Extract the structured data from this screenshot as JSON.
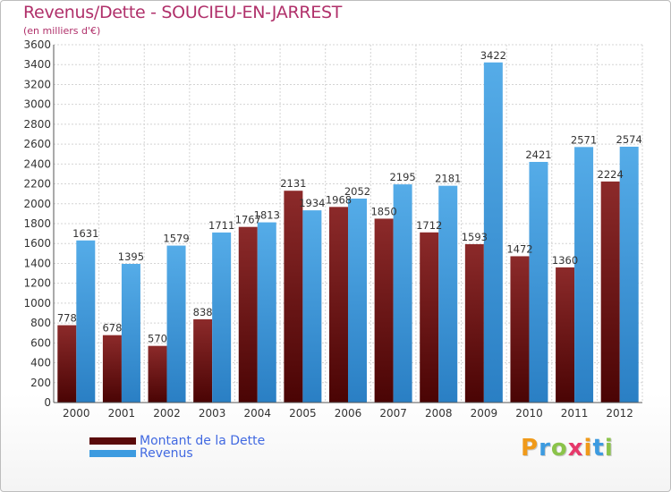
{
  "title": "Revenus/Dette - SOUCIEU-EN-JARREST",
  "subtitle": "(en milliers d'€)",
  "colors": {
    "dette": "#7a1616",
    "revenus": "#3d9be0",
    "title": "#b0306a",
    "legend_text": "#4169e1"
  },
  "legend": [
    {
      "label": "Montant de la Dette",
      "color": "#5a0a0a"
    },
    {
      "label": "Revenus",
      "color": "#3d9be0"
    }
  ],
  "logo": {
    "letters": [
      "P",
      "r",
      "o",
      "x",
      "i",
      "t",
      "i"
    ],
    "colors": [
      "#f09a1a",
      "#3d9be0",
      "#8bc34a",
      "#e6396b",
      "#f09a1a",
      "#3d9be0",
      "#8bc34a"
    ]
  },
  "chart_data": {
    "type": "bar",
    "categories": [
      "2000",
      "2001",
      "2002",
      "2003",
      "2004",
      "2005",
      "2006",
      "2007",
      "2008",
      "2009",
      "2010",
      "2011",
      "2012"
    ],
    "series": [
      {
        "name": "Montant de la Dette",
        "values": [
          778,
          678,
          570,
          838,
          1767,
          2131,
          1968,
          1850,
          1712,
          1593,
          1472,
          1360,
          2224
        ]
      },
      {
        "name": "Revenus",
        "values": [
          1631,
          1395,
          1579,
          1711,
          1813,
          1934,
          2052,
          2195,
          2181,
          3422,
          2421,
          2571,
          2574
        ]
      }
    ],
    "ylim": [
      0,
      3600
    ],
    "yticks": [
      0,
      200,
      400,
      600,
      800,
      1000,
      1200,
      1400,
      1600,
      1800,
      2000,
      2200,
      2400,
      2600,
      2800,
      3000,
      3200,
      3400,
      3600
    ],
    "grid": true,
    "legend_position": "bottom-left"
  }
}
